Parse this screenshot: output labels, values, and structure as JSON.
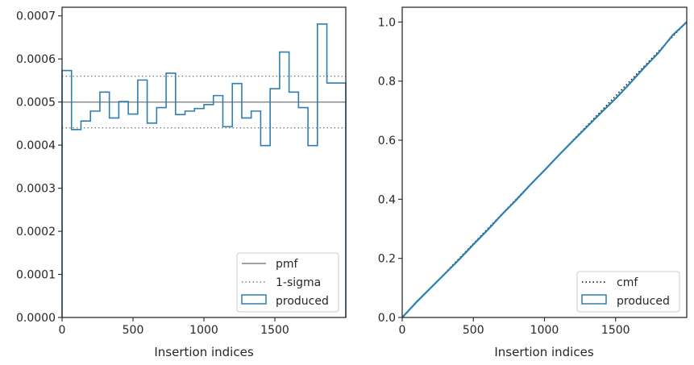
{
  "chart_data": [
    {
      "type": "histogram-step",
      "xlabel": "Insertion indices",
      "ylabel": "",
      "xlim": [
        0,
        2000
      ],
      "ylim": [
        0,
        0.00072
      ],
      "xticks": [
        0,
        500,
        1000,
        1500
      ],
      "xtick_labels": [
        "0",
        "500",
        "1000",
        "1500"
      ],
      "yticks": [
        0,
        0.0001,
        0.0002,
        0.0003,
        0.0004,
        0.0005,
        0.0006,
        0.0007
      ],
      "ytick_labels": [
        "0.0000",
        "0.0001",
        "0.0002",
        "0.0003",
        "0.0004",
        "0.0005",
        "0.0006",
        "0.0007"
      ],
      "grid": false,
      "legend_position": "lower-right",
      "reference_lines": [
        {
          "name": "pmf",
          "y": 0.0005,
          "style": "solid",
          "color": "#808080"
        },
        {
          "name": "1-sigma",
          "y": 0.00044,
          "style": "dotted",
          "color": "#808080"
        },
        {
          "name": "1-sigma",
          "y": 0.00056,
          "style": "dotted",
          "color": "#808080"
        }
      ],
      "series": [
        {
          "name": "produced",
          "color": "#2e7fb0",
          "bin_width": 66.67,
          "values": [
            0.000573,
            0.000436,
            0.000456,
            0.000479,
            0.000523,
            0.000463,
            0.000501,
            0.000472,
            0.000551,
            0.000451,
            0.000487,
            0.000567,
            0.000471,
            0.000479,
            0.000485,
            0.000494,
            0.000515,
            0.000443,
            0.000543,
            0.000463,
            0.000479,
            0.000399,
            0.000531,
            0.000616,
            0.000523,
            0.000487,
            0.000399,
            0.000681,
            0.000544,
            0.000544
          ]
        }
      ],
      "legend": [
        {
          "label": "pmf",
          "kind": "line-solid",
          "color": "#808080"
        },
        {
          "label": "1-sigma",
          "kind": "line-dotted",
          "color": "#808080"
        },
        {
          "label": "produced",
          "kind": "box",
          "color": "#2e7fb0"
        }
      ]
    },
    {
      "type": "line",
      "xlabel": "Insertion indices",
      "ylabel": "",
      "xlim": [
        0,
        2000
      ],
      "ylim": [
        0,
        1.05
      ],
      "xticks": [
        0,
        500,
        1000,
        1500
      ],
      "xtick_labels": [
        "0",
        "500",
        "1000",
        "1500"
      ],
      "yticks": [
        0,
        0.2,
        0.4,
        0.6,
        0.8,
        1.0
      ],
      "ytick_labels": [
        "0.0",
        "0.2",
        "0.4",
        "0.6",
        "0.8",
        "1.0"
      ],
      "grid": false,
      "legend_position": "lower-right",
      "series": [
        {
          "name": "cmf",
          "style": "dotted",
          "color": "#000000",
          "x": [
            0,
            2000
          ],
          "y": [
            0,
            1.0
          ]
        },
        {
          "name": "produced",
          "style": "solid",
          "color": "#2e7fb0",
          "x": [
            0,
            100,
            200,
            300,
            400,
            500,
            600,
            700,
            800,
            900,
            1000,
            1100,
            1200,
            1300,
            1400,
            1500,
            1600,
            1700,
            1800,
            1900,
            2000
          ],
          "y": [
            0,
            0.052,
            0.1,
            0.148,
            0.196,
            0.247,
            0.296,
            0.348,
            0.397,
            0.449,
            0.498,
            0.549,
            0.598,
            0.646,
            0.694,
            0.741,
            0.792,
            0.845,
            0.895,
            0.955,
            1.0
          ]
        }
      ],
      "legend": [
        {
          "label": "cmf",
          "kind": "line-dotted",
          "color": "#000000"
        },
        {
          "label": "produced",
          "kind": "box",
          "color": "#2e7fb0"
        }
      ]
    }
  ]
}
